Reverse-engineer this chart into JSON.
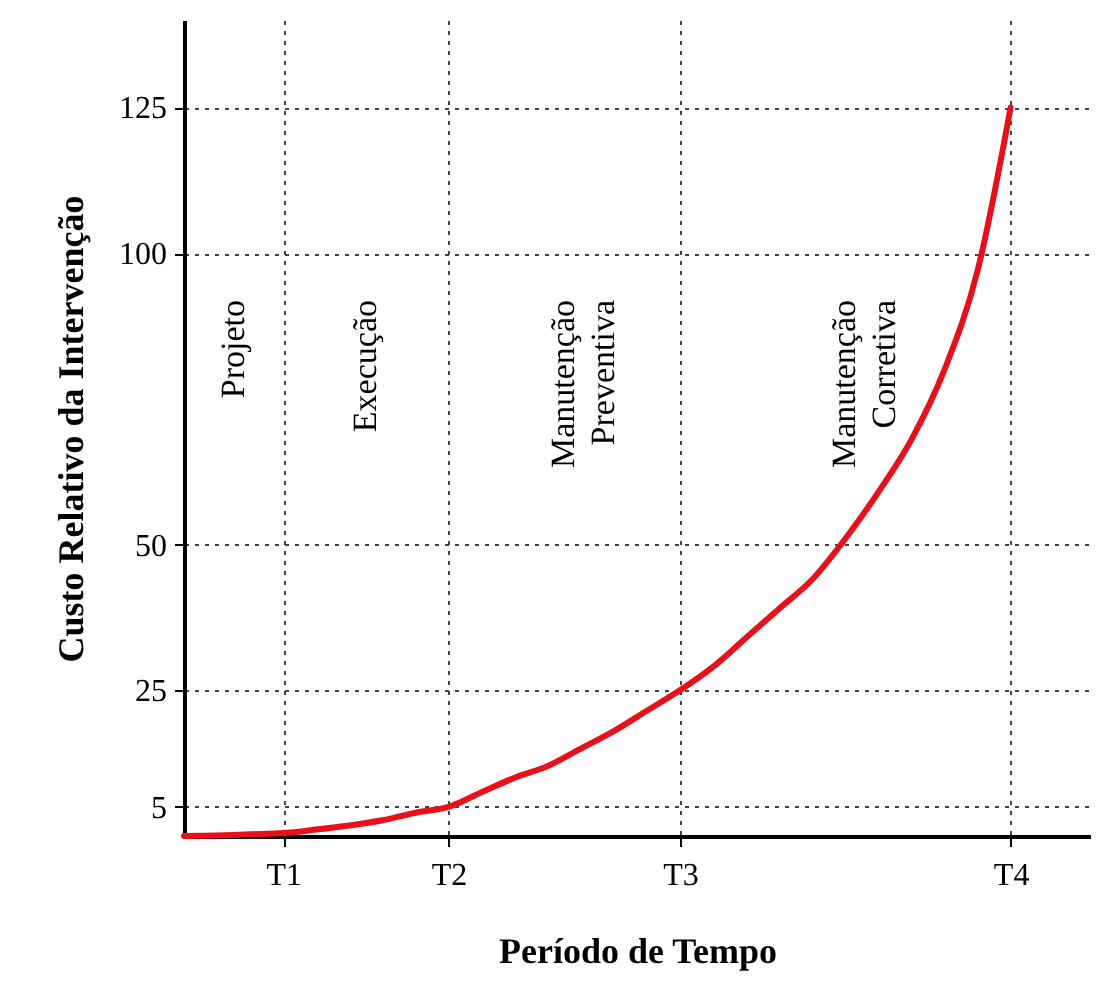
{
  "chart_data": {
    "type": "line",
    "xlabel": "Período de Tempo",
    "ylabel": "Custo Relativo da Intervenção",
    "categories": [
      null,
      null,
      null,
      "T1",
      null,
      null,
      null,
      null,
      "T2",
      null,
      null,
      null,
      null,
      null,
      null,
      "T3",
      null,
      null,
      null,
      null,
      null,
      null,
      null,
      null,
      null,
      "T4"
    ],
    "series": [
      {
        "color": "#e8101a",
        "values": [
          0,
          0.1,
          0.3,
          0.5,
          1.1,
          1.8,
          2.7,
          4,
          5,
          7.5,
          10,
          12,
          15,
          18,
          21.5,
          25,
          29,
          34,
          39,
          44,
          51,
          59,
          68,
          80,
          97,
          125
        ]
      }
    ],
    "ylim": [
      0,
      140
    ],
    "yticks": [
      5,
      25,
      50,
      100,
      125
    ],
    "grid": true,
    "line_style": "solid",
    "annotations": [
      "Projeto",
      "Execução",
      "Manutenção\nPreventiva",
      "Manutenção\nCorretiva"
    ]
  }
}
